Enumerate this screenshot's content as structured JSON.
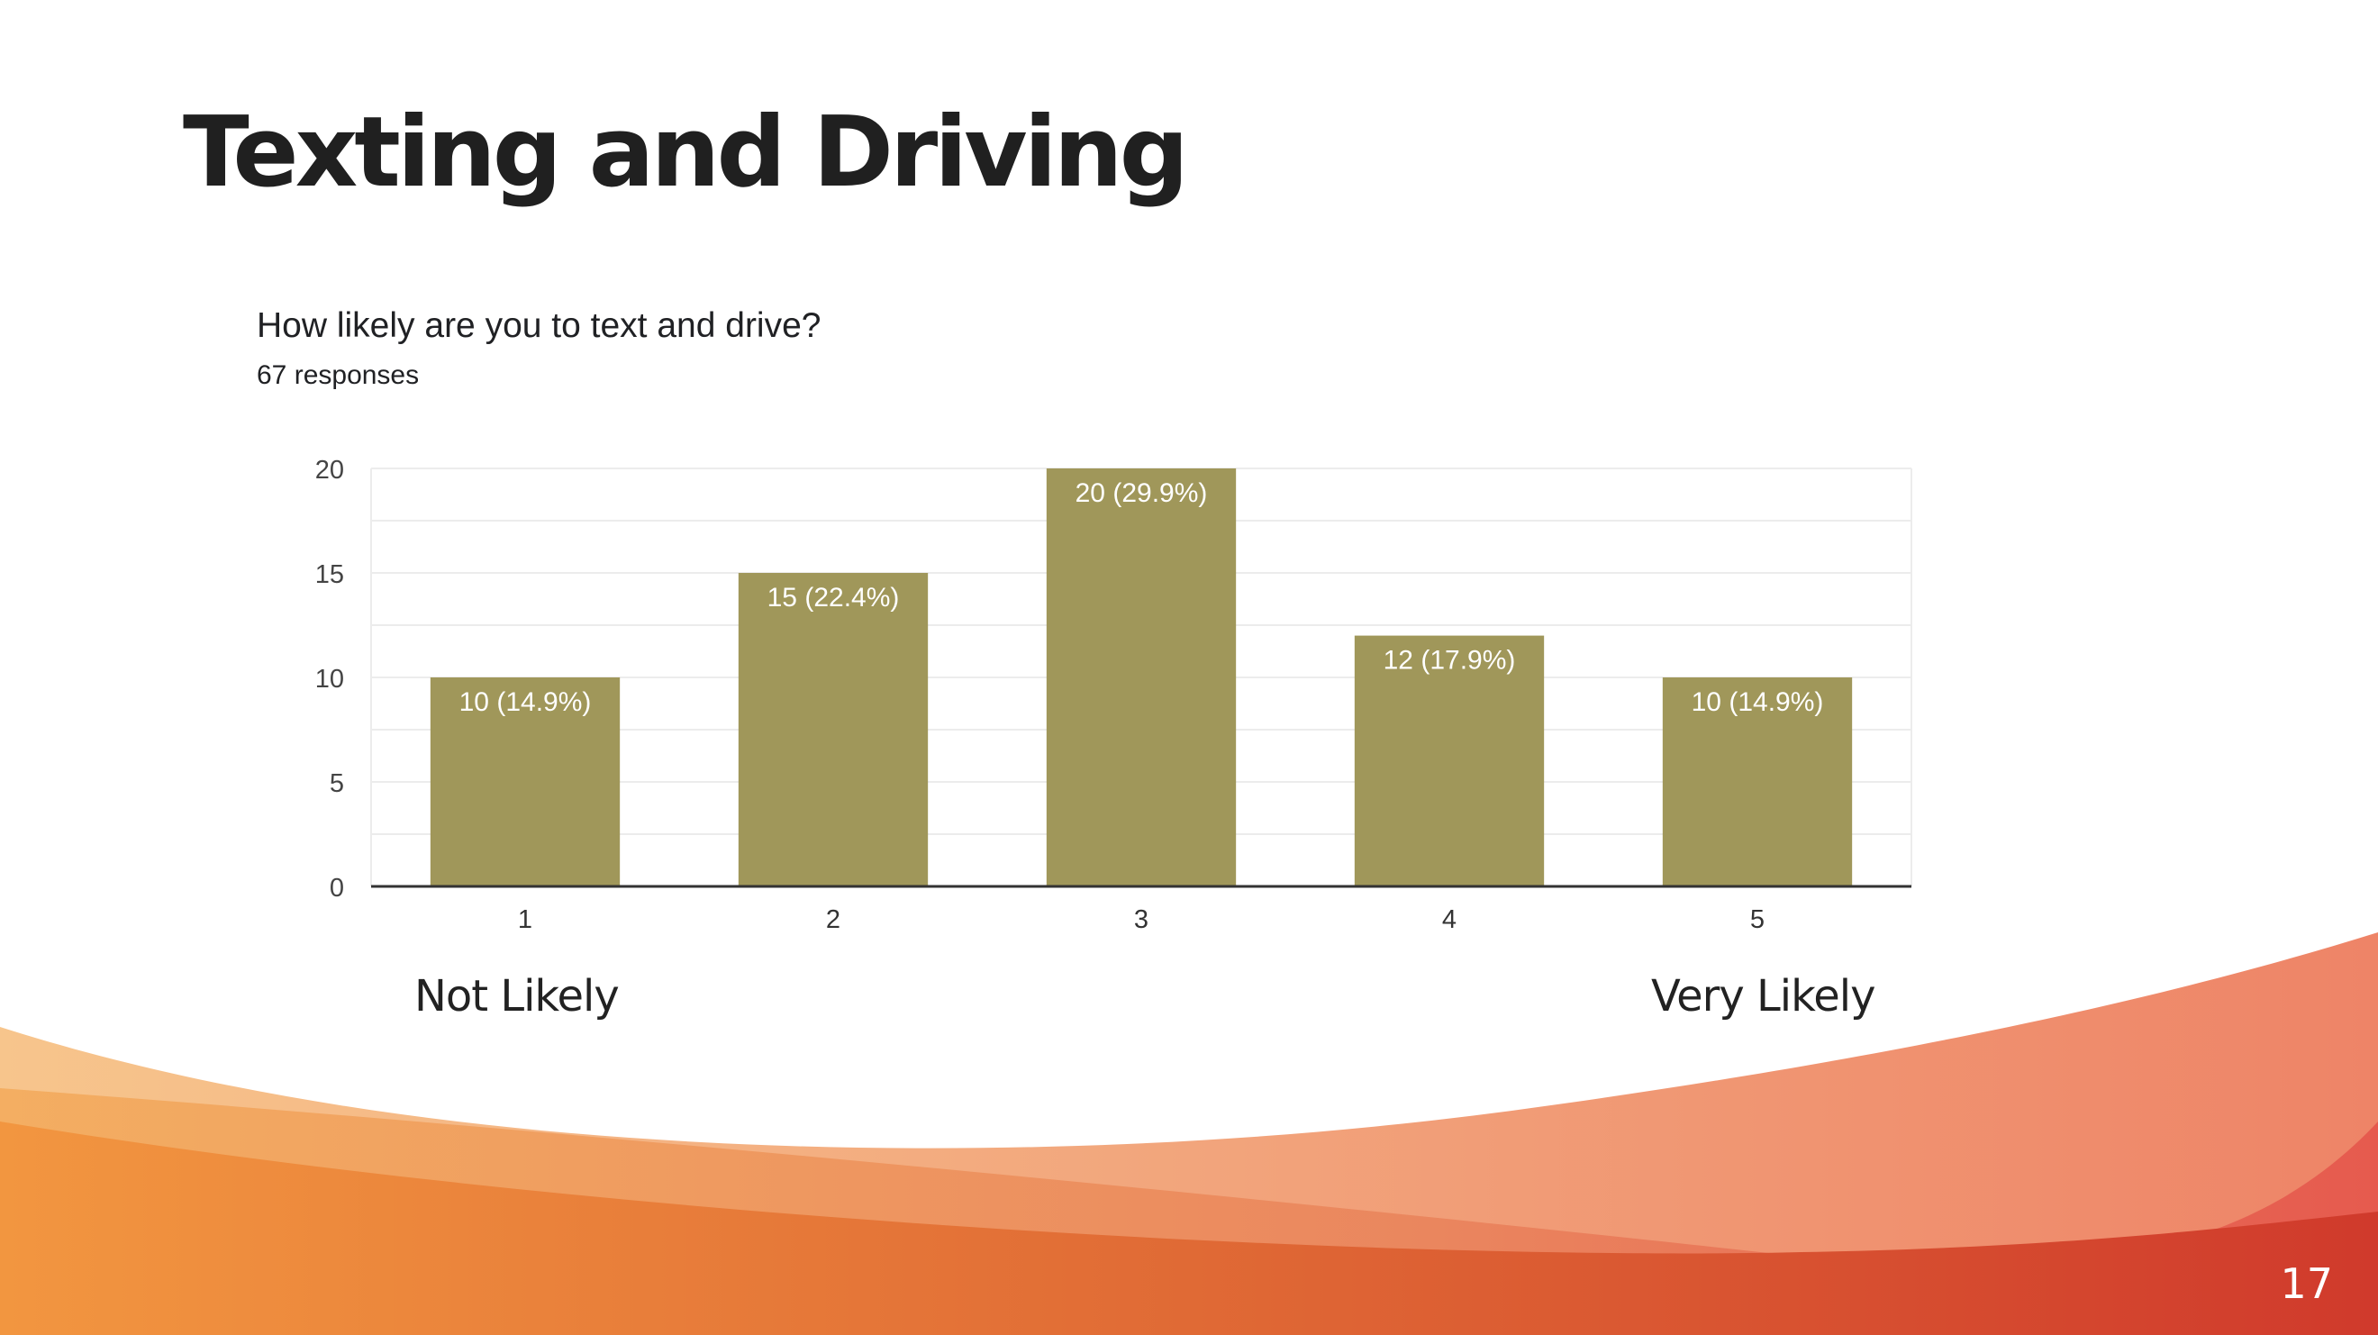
{
  "slide": {
    "title": "Texting and Driving",
    "page_number": "17"
  },
  "question": {
    "title": "How likely are you to text and drive?",
    "responses": "67 responses"
  },
  "scale_labels": {
    "low": "Not Likely",
    "high": "Very Likely"
  },
  "colors": {
    "bar": "#a0975a",
    "bar_label": "#ffffff",
    "grid": "#ececec",
    "axis": "#333333",
    "wave_orange": "#f0943e",
    "wave_red": "#d23a2c"
  },
  "chart_data": {
    "type": "bar",
    "title": "How likely are you to text and drive?",
    "subtitle": "67 responses",
    "categories": [
      "1",
      "2",
      "3",
      "4",
      "5"
    ],
    "values": [
      10,
      15,
      20,
      12,
      10
    ],
    "data_labels": [
      "10 (14.9%)",
      "15 (22.4%)",
      "20 (29.9%)",
      "12 (17.9%)",
      "10 (14.9%)"
    ],
    "ylim": [
      0,
      20
    ],
    "yticks": [
      0,
      5,
      10,
      15,
      20
    ],
    "xlabel": "",
    "ylabel": "",
    "grid": true,
    "legend": false
  }
}
